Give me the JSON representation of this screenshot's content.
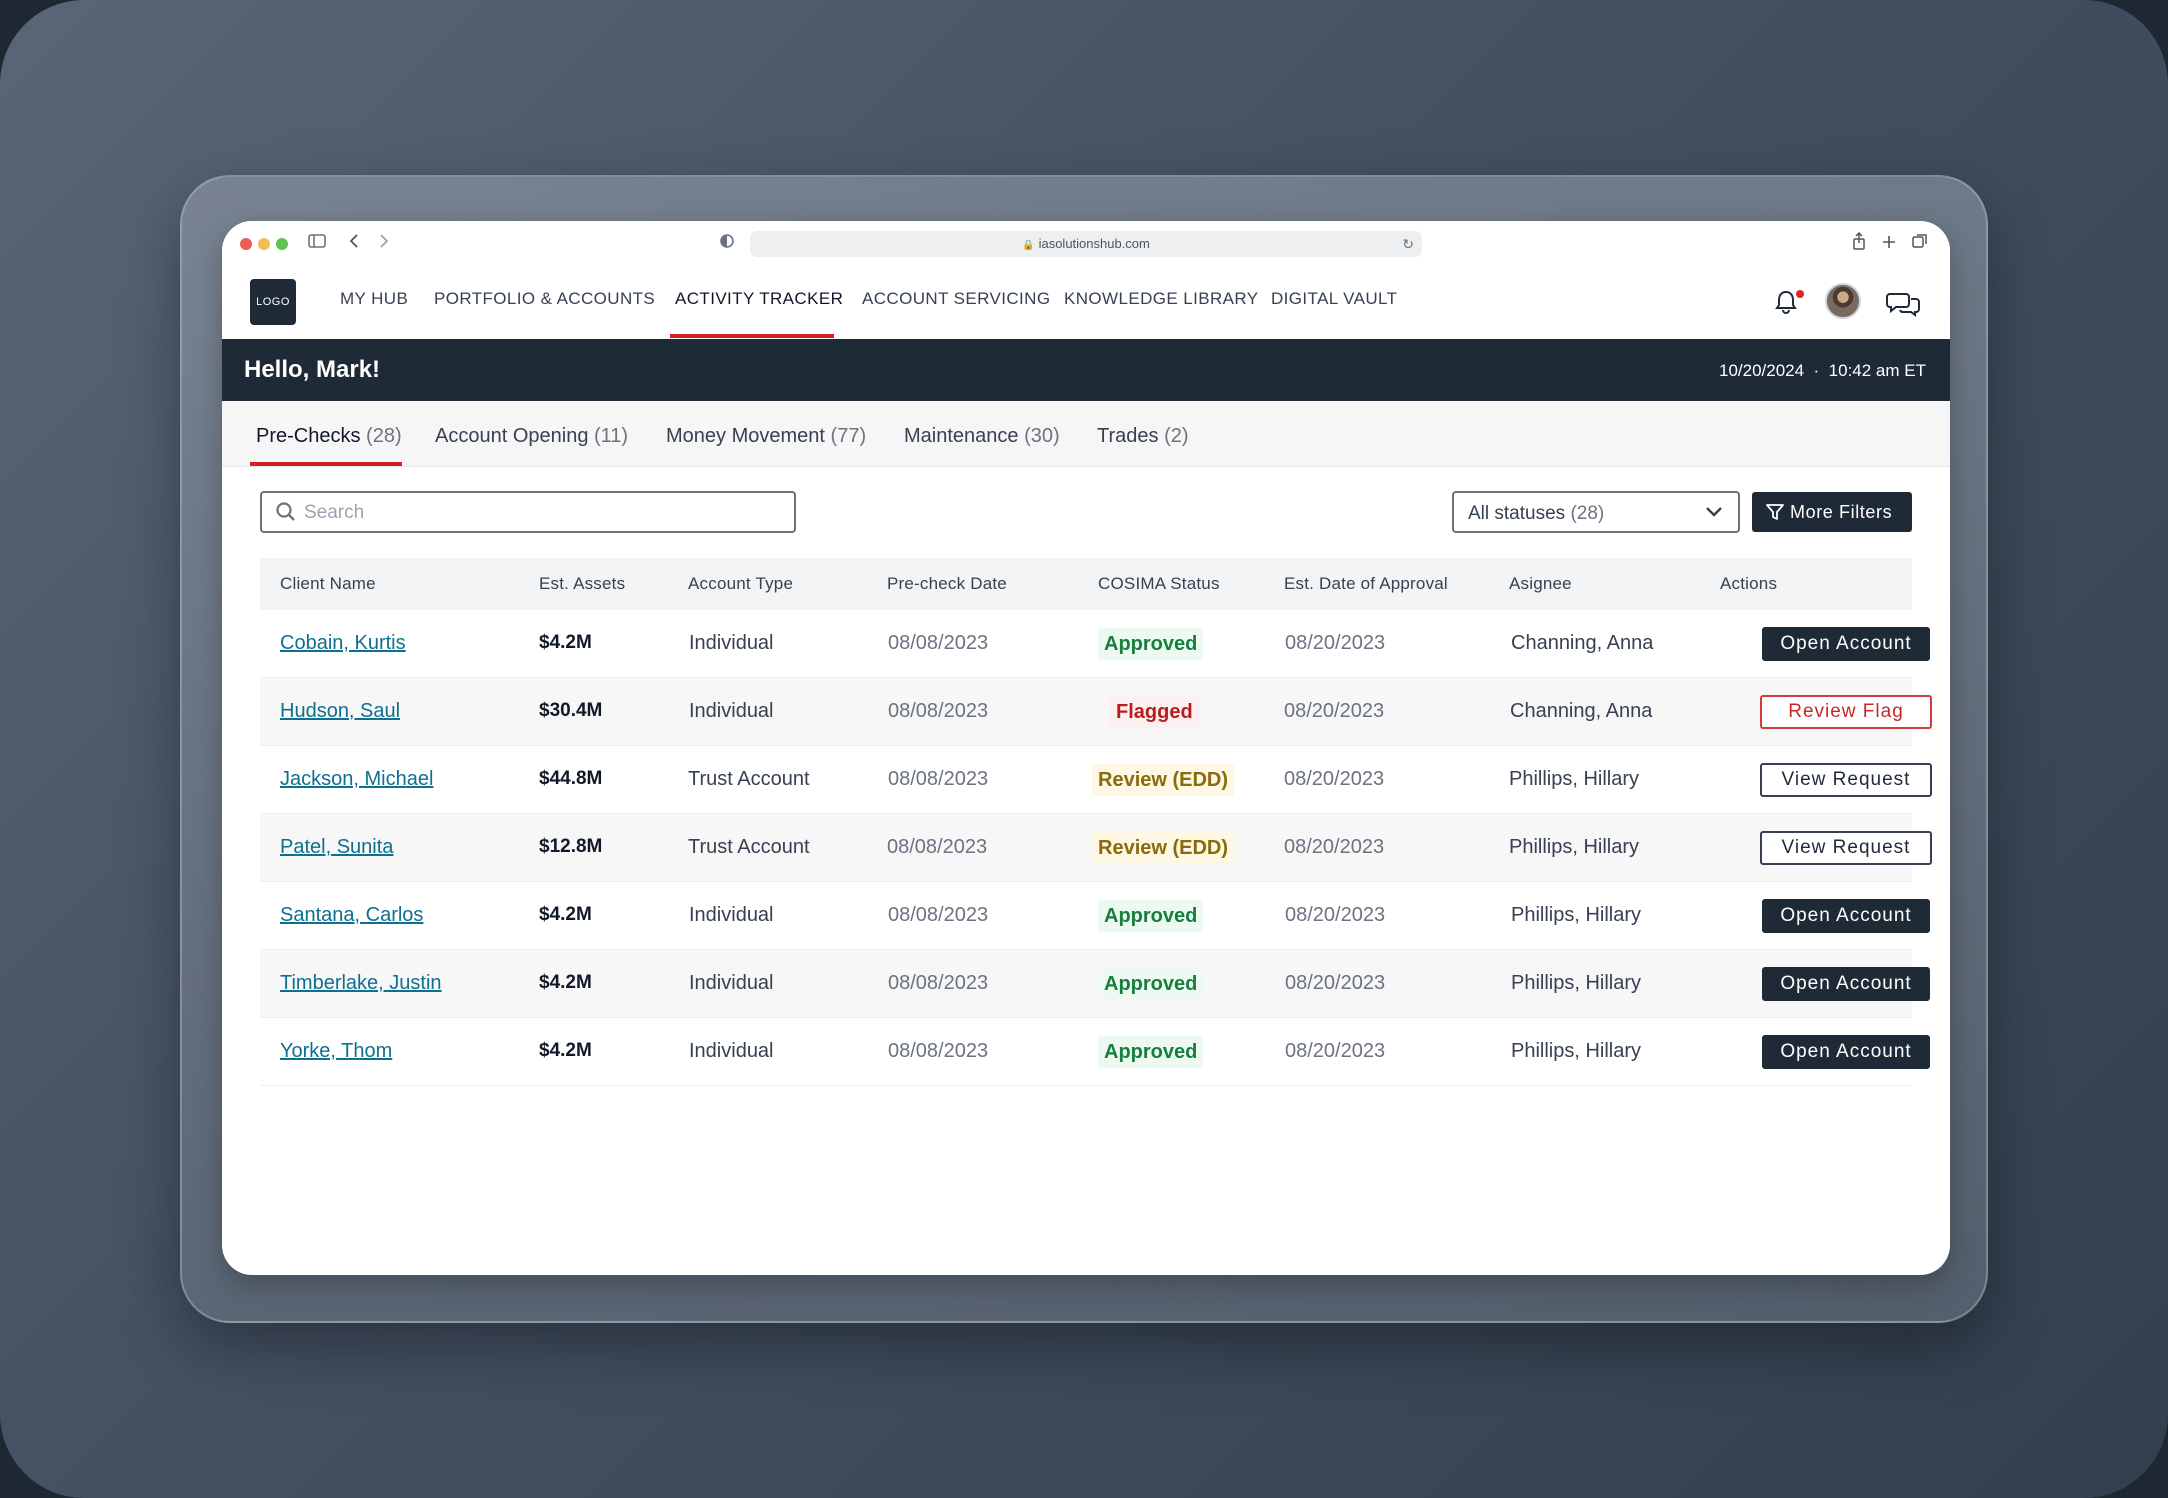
{
  "browser": {
    "url": "iasolutionshub.com"
  },
  "nav": {
    "logo": "LOGO",
    "items": [
      {
        "label": "MY HUB"
      },
      {
        "label": "PORTFOLIO & ACCOUNTS"
      },
      {
        "label": "ACTIVITY TRACKER",
        "active": true
      },
      {
        "label": "ACCOUNT SERVICING"
      },
      {
        "label": "KNOWLEDGE LIBRARY"
      },
      {
        "label": "DIGITAL VAULT"
      }
    ],
    "icons": [
      "bell-icon",
      "avatar",
      "chat-icon"
    ]
  },
  "hello": {
    "greeting": "Hello, Mark!",
    "date": "10/20/2024",
    "separator": "·",
    "time": "10:42 am ET"
  },
  "tabs": [
    {
      "label": "Pre-Checks",
      "count": "(28)",
      "active": true
    },
    {
      "label": "Account Opening",
      "count": "(11)"
    },
    {
      "label": "Money Movement",
      "count": "(77)"
    },
    {
      "label": "Maintenance",
      "count": "(30)"
    },
    {
      "label": "Trades",
      "count": "(2)"
    }
  ],
  "toolbar": {
    "search_placeholder": "Search",
    "status_label": "All statuses",
    "status_count": "(28)",
    "more_filters": "More Filters"
  },
  "table": {
    "headers": {
      "client": "Client Name",
      "assets": "Est. Assets",
      "type": "Account Type",
      "date": "Pre-check Date",
      "status": "COSIMA Status",
      "approval": "Est. Date of Approval",
      "assignee": "Asignee",
      "actions": "Actions"
    },
    "rows": [
      {
        "client": "Cobain, Kurtis",
        "assets": "$4.2M",
        "type": "Individual",
        "date": "08/08/2023",
        "status": "Approved",
        "approval": "08/20/2023",
        "assignee": "Channing, Anna",
        "action": "Open Account"
      },
      {
        "client": "Hudson, Saul",
        "assets": "$30.4M",
        "type": "Individual",
        "date": "08/08/2023",
        "status": "Flagged",
        "approval": "08/20/2023",
        "assignee": "Channing, Anna",
        "action": "Review Flag"
      },
      {
        "client": "Jackson, Michael",
        "assets": "$44.8M",
        "type": "Trust Account",
        "date": "08/08/2023",
        "status": "Review (EDD)",
        "approval": "08/20/2023",
        "assignee": "Phillips, Hillary",
        "action": "View Request"
      },
      {
        "client": "Patel, Sunita",
        "assets": "$12.8M",
        "type": "Trust Account",
        "date": "08/08/2023",
        "status": "Review (EDD)",
        "approval": "08/20/2023",
        "assignee": "Phillips, Hillary",
        "action": "View Request"
      },
      {
        "client": "Santana, Carlos",
        "assets": "$4.2M",
        "type": "Individual",
        "date": "08/08/2023",
        "status": "Approved",
        "approval": "08/20/2023",
        "assignee": "Phillips, Hillary",
        "action": "Open Account"
      },
      {
        "client": "Timberlake, Justin",
        "assets": "$4.2M",
        "type": "Individual",
        "date": "08/08/2023",
        "status": "Approved",
        "approval": "08/20/2023",
        "assignee": "Phillips, Hillary",
        "action": "Open Account"
      },
      {
        "client": "Yorke, Thom",
        "assets": "$4.2M",
        "type": "Individual",
        "date": "08/08/2023",
        "status": "Approved",
        "approval": "08/20/2023",
        "assignee": "Phillips, Hillary",
        "action": "Open Account"
      }
    ]
  },
  "colors": {
    "navy": "#1f2a37",
    "accent_red": "#d21f26",
    "link": "#0e6f8f",
    "approved": "#15803d",
    "flagged": "#b91c1c",
    "review": "#8a6a0a"
  }
}
